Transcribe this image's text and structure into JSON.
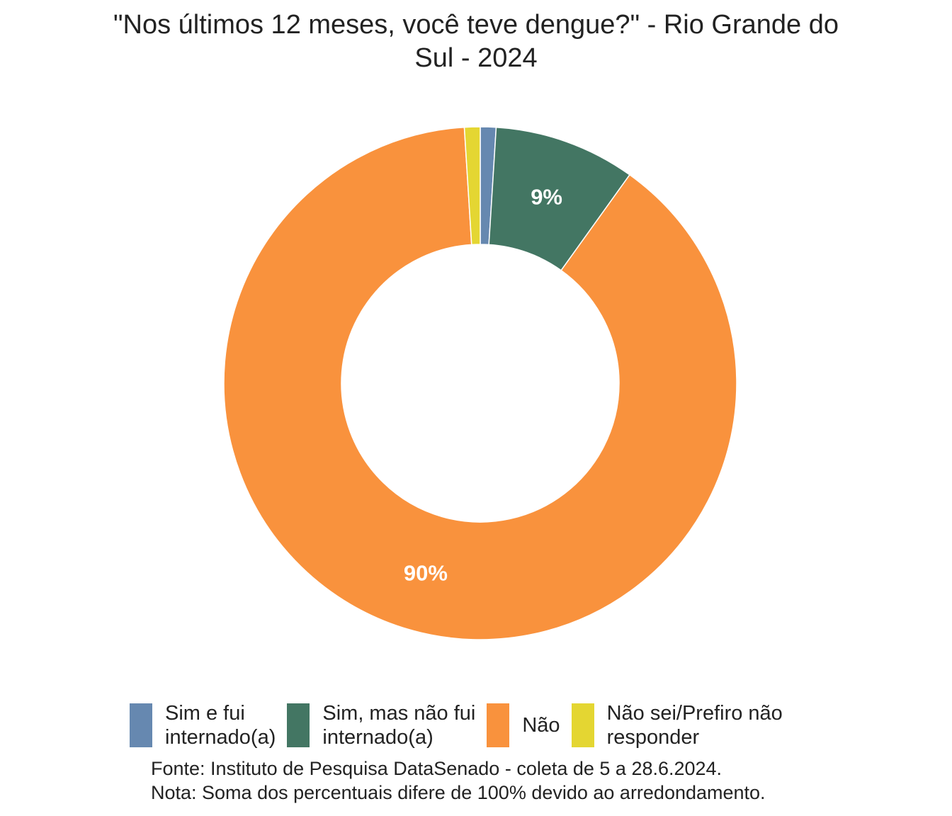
{
  "chart_data": {
    "type": "pie",
    "donut": true,
    "title_lines": [
      "\"Nos últimos 12 meses, você teve dengue?\" - Rio Grande do",
      "Sul - 2024"
    ],
    "slices": [
      {
        "label_lines": [
          "Sim e fui",
          "internado(a)"
        ],
        "value": 1,
        "color": "#6688b0",
        "data_label": ""
      },
      {
        "label_lines": [
          "Sim, mas não fui",
          "internado(a)"
        ],
        "value": 9,
        "color": "#437663",
        "data_label": "9%"
      },
      {
        "label_lines": [
          "Não"
        ],
        "value": 90,
        "color": "#f9923d",
        "data_label": "90%"
      },
      {
        "label_lines": [
          "Não sei/Prefiro não",
          "responder"
        ],
        "value": 1,
        "color": "#e4d632",
        "data_label": ""
      }
    ],
    "legend_position": "bottom",
    "source_lines": [
      "Fonte: Instituto de Pesquisa DataSenado - coleta de 5 a 28.6.2024.",
      "Nota: Soma dos percentuais difere de 100% devido ao arredondamento."
    ]
  }
}
